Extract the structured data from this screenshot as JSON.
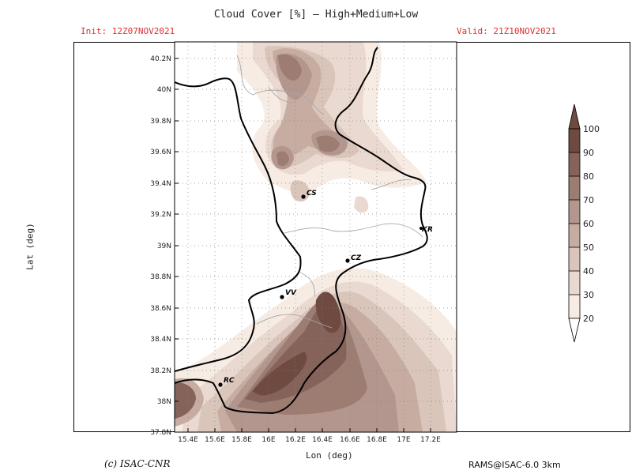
{
  "header": {
    "title": "Cloud Cover [%] — High+Medium+Low",
    "init": "Init: 12Z07NOV2021",
    "valid": "Valid: 21Z10NOV2021"
  },
  "axes": {
    "ylabel": "Lat (deg)",
    "xlabel": "Lon (deg)",
    "lat_ticks": [
      "40.2N",
      "40N",
      "39.8N",
      "39.6N",
      "39.4N",
      "39.2N",
      "39N",
      "38.8N",
      "38.6N",
      "38.4N",
      "38.2N",
      "38N",
      "37.8N"
    ],
    "lon_ticks": [
      "15.4E",
      "15.6E",
      "15.8E",
      "16E",
      "16.2E",
      "16.4E",
      "16.6E",
      "16.8E",
      "17E",
      "17.2E"
    ]
  },
  "cities": [
    {
      "code": "CS"
    },
    {
      "code": "KR"
    },
    {
      "code": "CZ"
    },
    {
      "code": "VV"
    },
    {
      "code": "RC"
    }
  ],
  "legend": {
    "levels": [
      "100",
      "90",
      "80",
      "70",
      "60",
      "50",
      "40",
      "30",
      "20"
    ],
    "colors": [
      "#6e4a40",
      "#85635a",
      "#9d7c72",
      "#b3968d",
      "#c7aca2",
      "#dac5bb",
      "#ead9d0",
      "#f7ece4"
    ]
  },
  "footer": {
    "credit": "(c) ISAC-CNR",
    "model": "RAMS@ISAC-6.0 3km"
  }
}
